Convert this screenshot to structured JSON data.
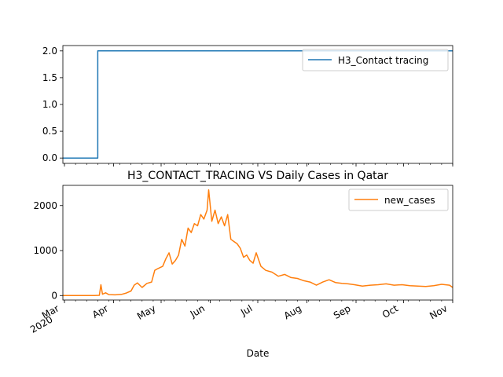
{
  "chart_data": [
    {
      "type": "line",
      "title": "",
      "xlabel": "",
      "ylabel": "",
      "ylim": [
        -0.1,
        2.1
      ],
      "yticks": [
        "0.0",
        "0.5",
        "1.0",
        "1.5",
        "2.0"
      ],
      "legend": {
        "position": "top-right"
      },
      "color": "#1f77b4",
      "series": [
        {
          "name": "H3_Contact tracing",
          "points": [
            [
              "2020-02-29",
              0
            ],
            [
              "2020-03-07",
              0
            ],
            [
              "2020-03-14",
              0
            ],
            [
              "2020-03-21",
              0
            ],
            [
              "2020-03-22",
              2
            ],
            [
              "2020-04-15",
              2
            ],
            [
              "2020-05-15",
              2
            ],
            [
              "2020-06-15",
              2
            ],
            [
              "2020-07-15",
              2
            ],
            [
              "2020-08-15",
              2
            ],
            [
              "2020-09-15",
              2
            ],
            [
              "2020-10-15",
              2
            ],
            [
              "2020-11-01",
              2
            ]
          ]
        }
      ]
    },
    {
      "type": "line",
      "title": "H3_CONTACT_TRACING VS Daily Cases in Qatar",
      "xlabel": "Date",
      "ylabel": "",
      "ylim": [
        -100,
        2450
      ],
      "yticks": [
        "0",
        "1000",
        "2000"
      ],
      "x_range": [
        "2020-02-29",
        "2020-11-01"
      ],
      "xticks": [
        "Mar\n2020",
        "Apr",
        "May",
        "Jun",
        "Jul",
        "Aug",
        "Sep",
        "Oct",
        "Nov"
      ],
      "legend": {
        "position": "top-right"
      },
      "color": "#ff7f0e",
      "series": [
        {
          "name": "new_cases",
          "points": [
            [
              "2020-02-29",
              0
            ],
            [
              "2020-03-10",
              0
            ],
            [
              "2020-03-20",
              0
            ],
            [
              "2020-03-23",
              5
            ],
            [
              "2020-03-24",
              240
            ],
            [
              "2020-03-25",
              30
            ],
            [
              "2020-03-27",
              60
            ],
            [
              "2020-03-29",
              20
            ],
            [
              "2020-04-02",
              15
            ],
            [
              "2020-04-06",
              25
            ],
            [
              "2020-04-09",
              55
            ],
            [
              "2020-04-12",
              100
            ],
            [
              "2020-04-14",
              230
            ],
            [
              "2020-04-16",
              280
            ],
            [
              "2020-04-19",
              180
            ],
            [
              "2020-04-22",
              270
            ],
            [
              "2020-04-25",
              300
            ],
            [
              "2020-04-27",
              560
            ],
            [
              "2020-04-29",
              600
            ],
            [
              "2020-05-02",
              650
            ],
            [
              "2020-05-04",
              820
            ],
            [
              "2020-05-06",
              950
            ],
            [
              "2020-05-08",
              700
            ],
            [
              "2020-05-10",
              780
            ],
            [
              "2020-05-12",
              900
            ],
            [
              "2020-05-14",
              1250
            ],
            [
              "2020-05-16",
              1100
            ],
            [
              "2020-05-18",
              1500
            ],
            [
              "2020-05-20",
              1400
            ],
            [
              "2020-05-22",
              1600
            ],
            [
              "2020-05-24",
              1550
            ],
            [
              "2020-05-26",
              1800
            ],
            [
              "2020-05-28",
              1700
            ],
            [
              "2020-05-30",
              1900
            ],
            [
              "2020-05-31",
              2350
            ],
            [
              "2020-06-02",
              1650
            ],
            [
              "2020-06-04",
              1900
            ],
            [
              "2020-06-06",
              1600
            ],
            [
              "2020-06-08",
              1750
            ],
            [
              "2020-06-10",
              1550
            ],
            [
              "2020-06-12",
              1800
            ],
            [
              "2020-06-14",
              1250
            ],
            [
              "2020-06-16",
              1200
            ],
            [
              "2020-06-18",
              1150
            ],
            [
              "2020-06-20",
              1050
            ],
            [
              "2020-06-22",
              850
            ],
            [
              "2020-06-24",
              900
            ],
            [
              "2020-06-26",
              780
            ],
            [
              "2020-06-28",
              720
            ],
            [
              "2020-06-30",
              950
            ],
            [
              "2020-07-03",
              650
            ],
            [
              "2020-07-06",
              560
            ],
            [
              "2020-07-10",
              520
            ],
            [
              "2020-07-14",
              430
            ],
            [
              "2020-07-18",
              470
            ],
            [
              "2020-07-22",
              400
            ],
            [
              "2020-07-26",
              380
            ],
            [
              "2020-07-30",
              330
            ],
            [
              "2020-08-03",
              300
            ],
            [
              "2020-08-07",
              230
            ],
            [
              "2020-08-11",
              300
            ],
            [
              "2020-08-15",
              350
            ],
            [
              "2020-08-19",
              290
            ],
            [
              "2020-08-23",
              270
            ],
            [
              "2020-08-27",
              260
            ],
            [
              "2020-08-31",
              240
            ],
            [
              "2020-09-05",
              210
            ],
            [
              "2020-09-10",
              230
            ],
            [
              "2020-09-15",
              240
            ],
            [
              "2020-09-20",
              260
            ],
            [
              "2020-09-25",
              230
            ],
            [
              "2020-09-30",
              240
            ],
            [
              "2020-10-05",
              220
            ],
            [
              "2020-10-10",
              210
            ],
            [
              "2020-10-15",
              200
            ],
            [
              "2020-10-20",
              220
            ],
            [
              "2020-10-25",
              250
            ],
            [
              "2020-10-30",
              230
            ],
            [
              "2020-11-01",
              180
            ]
          ]
        }
      ]
    }
  ]
}
